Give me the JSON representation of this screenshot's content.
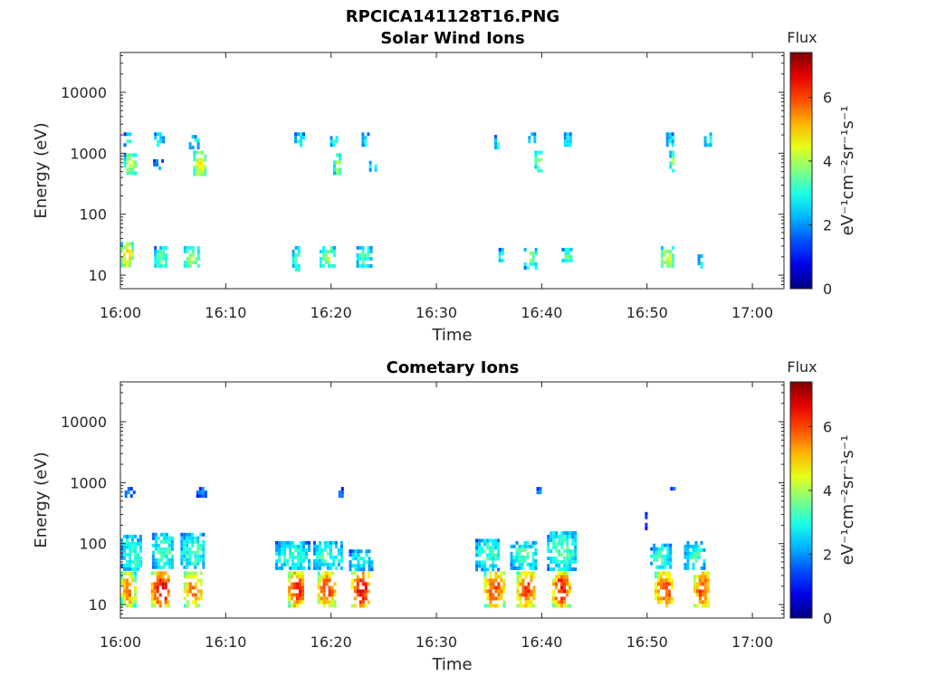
{
  "figure": {
    "title": "RPCICA141128T16.PNG"
  },
  "chart_data": [
    {
      "type": "heatmap",
      "title": "Solar Wind Ions",
      "xlabel": "Time",
      "ylabel": "Energy (eV)",
      "yscale": "log",
      "xlim_minutes": [
        0,
        63
      ],
      "ylim": [
        6,
        45000
      ],
      "xticks": [
        "16:00",
        "16:10",
        "16:20",
        "16:30",
        "16:40",
        "16:50",
        "17:00"
      ],
      "yticks": [
        {
          "value": 10,
          "label": "10"
        },
        {
          "value": 100,
          "label": "100"
        },
        {
          "value": 1000,
          "label": "1000"
        },
        {
          "value": 10000,
          "label": "10000"
        }
      ],
      "colorbar": {
        "label": "Flux",
        "units": "eV⁻¹cm⁻²sr⁻¹s⁻¹",
        "range": [
          0,
          7.4
        ],
        "ticks": [
          "0",
          "2",
          "4",
          "6"
        ],
        "colormap": "jet"
      },
      "blobs": [
        {
          "t": [
            0.0,
            1.1
          ],
          "e": [
            14,
            35
          ],
          "flux": 4.8
        },
        {
          "t": [
            3.2,
            4.4
          ],
          "e": [
            14,
            30
          ],
          "flux": 3.6
        },
        {
          "t": [
            6.0,
            7.4
          ],
          "e": [
            14,
            30
          ],
          "flux": 4.0
        },
        {
          "t": [
            16.3,
            16.9
          ],
          "e": [
            12,
            30
          ],
          "flux": 3.4
        },
        {
          "t": [
            18.9,
            20.4
          ],
          "e": [
            14,
            30
          ],
          "flux": 3.8
        },
        {
          "t": [
            22.4,
            23.7
          ],
          "e": [
            14,
            30
          ],
          "flux": 3.4
        },
        {
          "t": [
            35.9,
            36.4
          ],
          "e": [
            18,
            28
          ],
          "flux": 3.4
        },
        {
          "t": [
            38.3,
            39.4
          ],
          "e": [
            14,
            28
          ],
          "flux": 3.8
        },
        {
          "t": [
            41.9,
            42.8
          ],
          "e": [
            18,
            28
          ],
          "flux": 3.6
        },
        {
          "t": [
            51.3,
            52.4
          ],
          "e": [
            14,
            30
          ],
          "flux": 4.4
        },
        {
          "t": [
            54.8,
            55.2
          ],
          "e": [
            14,
            22
          ],
          "flux": 3.2
        },
        {
          "t": [
            0.3,
            1.4
          ],
          "e": [
            450,
            1000
          ],
          "flux": 4.2
        },
        {
          "t": [
            3.1,
            3.9
          ],
          "e": [
            550,
            800
          ],
          "flux": 2.0
        },
        {
          "t": [
            6.9,
            8.0
          ],
          "e": [
            450,
            1100
          ],
          "flux": 4.6
        },
        {
          "t": [
            20.2,
            20.9
          ],
          "e": [
            450,
            1000
          ],
          "flux": 3.8
        },
        {
          "t": [
            23.6,
            24.3
          ],
          "e": [
            550,
            750
          ],
          "flux": 3.2
        },
        {
          "t": [
            35.5,
            36.0
          ],
          "e": [
            1200,
            2000
          ],
          "flux": 3.2
        },
        {
          "t": [
            39.3,
            40.0
          ],
          "e": [
            500,
            1100
          ],
          "flux": 4.0
        },
        {
          "t": [
            52.1,
            52.6
          ],
          "e": [
            500,
            1100
          ],
          "flux": 3.8
        },
        {
          "t": [
            0.3,
            1.0
          ],
          "e": [
            1300,
            2200
          ],
          "flux": 3.0
        },
        {
          "t": [
            3.2,
            4.0
          ],
          "e": [
            1300,
            2200
          ],
          "flux": 3.0
        },
        {
          "t": [
            6.5,
            7.3
          ],
          "e": [
            1300,
            2000
          ],
          "flux": 3.0
        },
        {
          "t": [
            16.5,
            17.3
          ],
          "e": [
            1300,
            2200
          ],
          "flux": 3.0
        },
        {
          "t": [
            19.9,
            20.6
          ],
          "e": [
            1300,
            2200
          ],
          "flux": 3.0
        },
        {
          "t": [
            22.9,
            23.6
          ],
          "e": [
            1300,
            2200
          ],
          "flux": 3.0
        },
        {
          "t": [
            38.7,
            39.4
          ],
          "e": [
            1300,
            2200
          ],
          "flux": 3.0
        },
        {
          "t": [
            42.1,
            42.8
          ],
          "e": [
            1300,
            2200
          ],
          "flux": 3.0
        },
        {
          "t": [
            51.8,
            52.4
          ],
          "e": [
            1300,
            2200
          ],
          "flux": 2.8
        },
        {
          "t": [
            55.4,
            56.1
          ],
          "e": [
            1300,
            2200
          ],
          "flux": 3.0
        }
      ]
    },
    {
      "type": "heatmap",
      "title": "Cometary Ions",
      "xlabel": "Time",
      "ylabel": "Energy (eV)",
      "yscale": "log",
      "xlim_minutes": [
        0,
        63
      ],
      "ylim": [
        6,
        45000
      ],
      "xticks": [
        "16:00",
        "16:10",
        "16:20",
        "16:30",
        "16:40",
        "16:50",
        "17:00"
      ],
      "yticks": [
        {
          "value": 10,
          "label": "10"
        },
        {
          "value": 100,
          "label": "100"
        },
        {
          "value": 1000,
          "label": "1000"
        },
        {
          "value": 10000,
          "label": "10000"
        }
      ],
      "colorbar": {
        "label": "Flux",
        "units": "eV⁻¹cm⁻²sr⁻¹s⁻¹",
        "range": [
          0,
          7.4
        ],
        "ticks": [
          "0",
          "2",
          "4",
          "6"
        ],
        "colormap": "jet"
      },
      "blobs": [
        {
          "t": [
            0.0,
            1.3
          ],
          "e": [
            10,
            35
          ],
          "flux": 5.6
        },
        {
          "t": [
            2.9,
            4.7
          ],
          "e": [
            10,
            35
          ],
          "flux": 6.6
        },
        {
          "t": [
            6.0,
            7.7
          ],
          "e": [
            10,
            35
          ],
          "flux": 5.6
        },
        {
          "t": [
            15.9,
            17.4
          ],
          "e": [
            10,
            35
          ],
          "flux": 6.4
        },
        {
          "t": [
            18.7,
            20.3
          ],
          "e": [
            10,
            35
          ],
          "flux": 6.0
        },
        {
          "t": [
            21.9,
            23.6
          ],
          "e": [
            10,
            35
          ],
          "flux": 6.6
        },
        {
          "t": [
            34.5,
            36.4
          ],
          "e": [
            10,
            35
          ],
          "flux": 6.0
        },
        {
          "t": [
            37.6,
            39.4
          ],
          "e": [
            10,
            35
          ],
          "flux": 6.0
        },
        {
          "t": [
            41.0,
            42.6
          ],
          "e": [
            10,
            35
          ],
          "flux": 6.4
        },
        {
          "t": [
            50.7,
            52.4
          ],
          "e": [
            10,
            35
          ],
          "flux": 6.0
        },
        {
          "t": [
            54.4,
            55.9
          ],
          "e": [
            10,
            35
          ],
          "flux": 6.0
        },
        {
          "t": [
            0.4,
            1.4
          ],
          "e": [
            600,
            850
          ],
          "flux": 2.0
        },
        {
          "t": [
            7.2,
            8.2
          ],
          "e": [
            600,
            850
          ],
          "flux": 2.0
        },
        {
          "t": [
            20.7,
            21.0
          ],
          "e": [
            600,
            850
          ],
          "flux": 2.0
        },
        {
          "t": [
            39.5,
            39.8
          ],
          "e": [
            650,
            850
          ],
          "flux": 2.0
        },
        {
          "t": [
            52.2,
            52.6
          ],
          "e": [
            700,
            850
          ],
          "flux": 2.2
        },
        {
          "t": [
            49.8,
            50.0
          ],
          "e": [
            180,
            330
          ],
          "flux": 1.8
        },
        {
          "t": [
            0.0,
            2.0
          ],
          "e": [
            40,
            140
          ],
          "flux": 3.2
        },
        {
          "t": [
            3.0,
            5.0
          ],
          "e": [
            40,
            150
          ],
          "flux": 3.2
        },
        {
          "t": [
            5.7,
            7.9
          ],
          "e": [
            40,
            150
          ],
          "flux": 3.2
        },
        {
          "t": [
            14.7,
            17.8
          ],
          "e": [
            40,
            110
          ],
          "flux": 3.2
        },
        {
          "t": [
            18.3,
            21.0
          ],
          "e": [
            40,
            110
          ],
          "flux": 3.2
        },
        {
          "t": [
            21.7,
            23.8
          ],
          "e": [
            40,
            80
          ],
          "flux": 3.0
        },
        {
          "t": [
            33.7,
            36.0
          ],
          "e": [
            40,
            120
          ],
          "flux": 3.2
        },
        {
          "t": [
            37.0,
            39.5
          ],
          "e": [
            40,
            110
          ],
          "flux": 3.2
        },
        {
          "t": [
            40.5,
            43.1
          ],
          "e": [
            40,
            160
          ],
          "flux": 3.4
        },
        {
          "t": [
            50.3,
            52.2
          ],
          "e": [
            40,
            100
          ],
          "flux": 3.2
        },
        {
          "t": [
            53.5,
            55.5
          ],
          "e": [
            40,
            110
          ],
          "flux": 3.2
        }
      ]
    }
  ]
}
